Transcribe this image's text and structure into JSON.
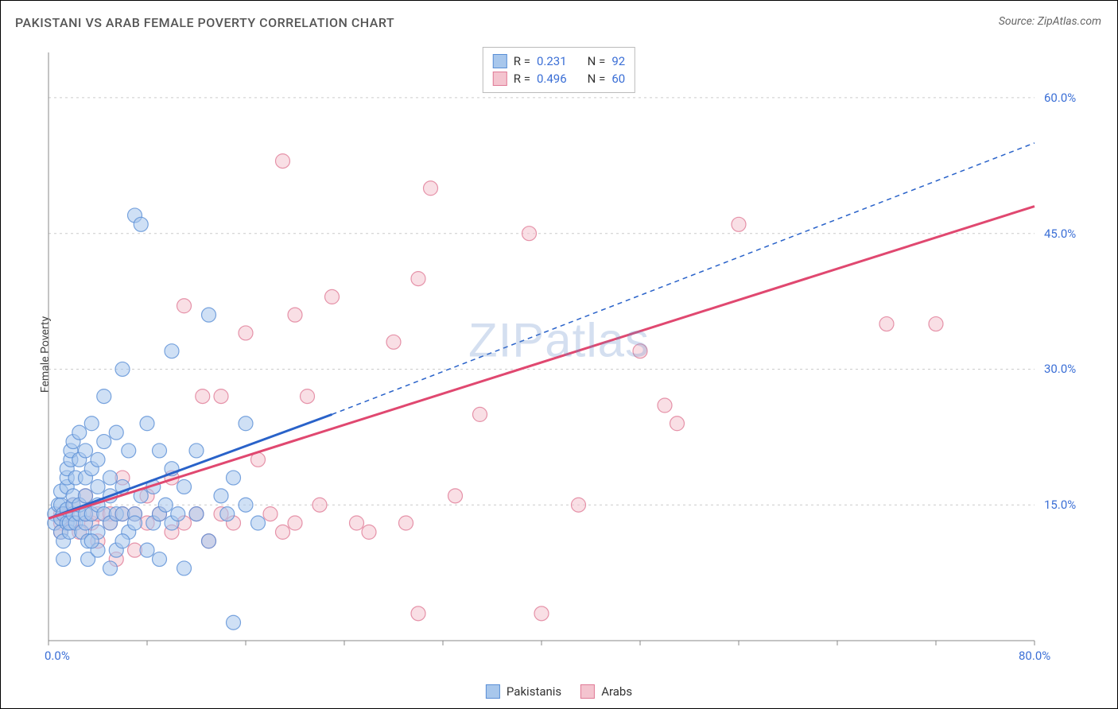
{
  "title": "PAKISTANI VS ARAB FEMALE POVERTY CORRELATION CHART",
  "source_label": "Source:",
  "source_name": "ZipAtlas.com",
  "y_axis_label": "Female Poverty",
  "watermark": "ZIPatlas",
  "chart": {
    "type": "scatter",
    "xlim": [
      0,
      80
    ],
    "ylim": [
      0,
      65
    ],
    "x_origin_label": "0.0%",
    "x_max_label": "80.0%",
    "y_tick_values": [
      15,
      30,
      45,
      60
    ],
    "y_tick_labels": [
      "15.0%",
      "30.0%",
      "45.0%",
      "60.0%"
    ],
    "x_tick_values": [
      0,
      8,
      16,
      24,
      32,
      40,
      48,
      56,
      64,
      72,
      80
    ],
    "background_color": "#ffffff",
    "grid_color": "#cccccc",
    "axis_color": "#888888",
    "marker_radius": 9,
    "marker_opacity": 0.55,
    "axis_label_color": "#3b6fd6"
  },
  "series": {
    "pakistanis": {
      "label": "Pakistanis",
      "fill_color": "#a8c7ec",
      "stroke_color": "#5a8fd6",
      "line_color": "#2962c9",
      "R_label": "R  =",
      "R": "0.231",
      "N_label": "N  =",
      "N": "92",
      "regression_solid": {
        "x1": 0,
        "y1": 13.5,
        "x2": 23,
        "y2": 25
      },
      "regression_dashed": {
        "x1": 23,
        "y1": 25,
        "x2": 80,
        "y2": 55
      },
      "points": [
        [
          0.5,
          14
        ],
        [
          0.5,
          13
        ],
        [
          0.8,
          15
        ],
        [
          1,
          12
        ],
        [
          1,
          13.5
        ],
        [
          1,
          15
        ],
        [
          1,
          16.5
        ],
        [
          1.2,
          14
        ],
        [
          1.2,
          11
        ],
        [
          1.2,
          9
        ],
        [
          1.5,
          13
        ],
        [
          1.5,
          14.5
        ],
        [
          1.5,
          17
        ],
        [
          1.5,
          18
        ],
        [
          1.5,
          19
        ],
        [
          1.7,
          12
        ],
        [
          1.7,
          13
        ],
        [
          1.8,
          20
        ],
        [
          1.8,
          21
        ],
        [
          2,
          14
        ],
        [
          2,
          15
        ],
        [
          2,
          16
        ],
        [
          2,
          22
        ],
        [
          2.2,
          13
        ],
        [
          2.2,
          18
        ],
        [
          2.5,
          14
        ],
        [
          2.5,
          15
        ],
        [
          2.5,
          20
        ],
        [
          2.5,
          23
        ],
        [
          2.7,
          12
        ],
        [
          3,
          13
        ],
        [
          3,
          14
        ],
        [
          3,
          16
        ],
        [
          3,
          18
        ],
        [
          3,
          21
        ],
        [
          3.2,
          9
        ],
        [
          3.2,
          11
        ],
        [
          3.5,
          14
        ],
        [
          3.5,
          19
        ],
        [
          3.5,
          24
        ],
        [
          4,
          12
        ],
        [
          4,
          15
        ],
        [
          4,
          20
        ],
        [
          4,
          10
        ],
        [
          4.5,
          14
        ],
        [
          4.5,
          22
        ],
        [
          4.5,
          27
        ],
        [
          5,
          13
        ],
        [
          5,
          16
        ],
        [
          5,
          8
        ],
        [
          5.5,
          14
        ],
        [
          5.5,
          23
        ],
        [
          5.5,
          10
        ],
        [
          6,
          14
        ],
        [
          6,
          17
        ],
        [
          6,
          30
        ],
        [
          6.5,
          12
        ],
        [
          6.5,
          21
        ],
        [
          7,
          14
        ],
        [
          7,
          47
        ],
        [
          7.5,
          16
        ],
        [
          7.5,
          46
        ],
        [
          8,
          24
        ],
        [
          8,
          10
        ],
        [
          8.5,
          13
        ],
        [
          8.5,
          17
        ],
        [
          9,
          14
        ],
        [
          9,
          21
        ],
        [
          9,
          9
        ],
        [
          9.5,
          15
        ],
        [
          10,
          13
        ],
        [
          10,
          19
        ],
        [
          10,
          32
        ],
        [
          10.5,
          14
        ],
        [
          11,
          8
        ],
        [
          11,
          17
        ],
        [
          12,
          14
        ],
        [
          12,
          21
        ],
        [
          13,
          11
        ],
        [
          13,
          36
        ],
        [
          14,
          16
        ],
        [
          14.5,
          14
        ],
        [
          15,
          18
        ],
        [
          15,
          2
        ],
        [
          16,
          15
        ],
        [
          16,
          24
        ],
        [
          17,
          13
        ],
        [
          7,
          13
        ],
        [
          6,
          11
        ],
        [
          5,
          18
        ],
        [
          4,
          17
        ],
        [
          3.5,
          11
        ]
      ]
    },
    "arabs": {
      "label": "Arabs",
      "fill_color": "#f4c4cf",
      "stroke_color": "#e07a96",
      "line_color": "#e04870",
      "R_label": "R  =",
      "R": "0.496",
      "N_label": "N  =",
      "N": "60",
      "regression_solid": {
        "x1": 0,
        "y1": 13.5,
        "x2": 80,
        "y2": 48
      },
      "points": [
        [
          1,
          13
        ],
        [
          1,
          14
        ],
        [
          1,
          12
        ],
        [
          1.5,
          14
        ],
        [
          2,
          13
        ],
        [
          2,
          15
        ],
        [
          2.5,
          12
        ],
        [
          3,
          14
        ],
        [
          3,
          16
        ],
        [
          3.5,
          13
        ],
        [
          4,
          14
        ],
        [
          4,
          11
        ],
        [
          5,
          14
        ],
        [
          5,
          13
        ],
        [
          5.5,
          9
        ],
        [
          6,
          14
        ],
        [
          6,
          18
        ],
        [
          7,
          10
        ],
        [
          7,
          14
        ],
        [
          8,
          13
        ],
        [
          8,
          16
        ],
        [
          9,
          14
        ],
        [
          10,
          12
        ],
        [
          10,
          18
        ],
        [
          11,
          37
        ],
        [
          11,
          13
        ],
        [
          12,
          14
        ],
        [
          12.5,
          27
        ],
        [
          13,
          11
        ],
        [
          14,
          27
        ],
        [
          14,
          14
        ],
        [
          15,
          13
        ],
        [
          16,
          34
        ],
        [
          17,
          20
        ],
        [
          18,
          14
        ],
        [
          19,
          12
        ],
        [
          19,
          53
        ],
        [
          20,
          36
        ],
        [
          20,
          13
        ],
        [
          21,
          27
        ],
        [
          22,
          15
        ],
        [
          23,
          38
        ],
        [
          25,
          13
        ],
        [
          26,
          12
        ],
        [
          28,
          33
        ],
        [
          29,
          13
        ],
        [
          30,
          3
        ],
        [
          30,
          40
        ],
        [
          31,
          50
        ],
        [
          33,
          16
        ],
        [
          35,
          25
        ],
        [
          39,
          45
        ],
        [
          40,
          3
        ],
        [
          43,
          15
        ],
        [
          48,
          32
        ],
        [
          50,
          26
        ],
        [
          51,
          24
        ],
        [
          56,
          46
        ],
        [
          68,
          35
        ],
        [
          72,
          35
        ]
      ]
    }
  },
  "legend": {
    "item1_label": "Pakistanis",
    "item2_label": "Arabs"
  }
}
